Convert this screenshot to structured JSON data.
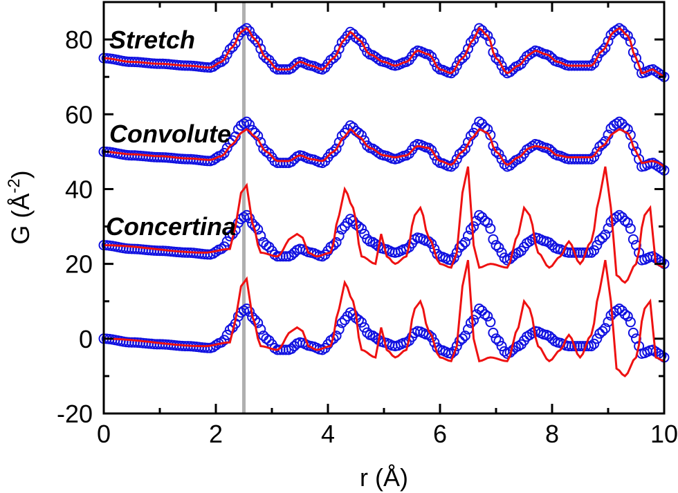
{
  "chart_data": {
    "type": "line",
    "xlabel": "r (Å)",
    "ylabel_main": "G (Å",
    "ylabel_sup": "-2",
    "ylabel_tail": ")",
    "xlim": [
      0,
      10
    ],
    "ylim": [
      -20,
      90
    ],
    "xticks": [
      0,
      2,
      4,
      6,
      8,
      10
    ],
    "yticks": [
      -20,
      0,
      20,
      40,
      60,
      80
    ],
    "grid": false,
    "reference_line_x": 2.5,
    "colors": {
      "measured": "#1010e0",
      "model": "#ee1111",
      "reference": "#b0b0b0"
    },
    "annotations": [
      {
        "text": "Stretch",
        "x": 0.1,
        "y": 80
      },
      {
        "text": "Convolute",
        "x": 0.1,
        "y": 55
      },
      {
        "text": "Concertina",
        "x": 0.1,
        "y": 29
      }
    ],
    "series": [
      {
        "style": "circles",
        "offset": 0,
        "x": [
          0.0,
          0.5,
          1.0,
          1.5,
          1.9,
          2.1,
          2.3,
          2.45,
          2.55,
          2.7,
          2.9,
          3.1,
          3.3,
          3.5,
          3.7,
          3.9,
          4.1,
          4.3,
          4.4,
          4.55,
          4.75,
          5.0,
          5.2,
          5.4,
          5.6,
          5.8,
          6.0,
          6.2,
          6.4,
          6.6,
          6.7,
          6.85,
          7.0,
          7.2,
          7.4,
          7.6,
          7.7,
          7.9,
          8.1,
          8.3,
          8.5,
          8.7,
          8.9,
          9.1,
          9.2,
          9.35,
          9.5,
          9.6,
          9.8,
          9.9,
          10.0
        ],
        "y": [
          0,
          -1,
          -1.5,
          -2,
          -2.5,
          -1,
          3,
          7,
          8,
          5,
          0,
          -3,
          -3,
          -1,
          -2,
          -3,
          0,
          5,
          7,
          5,
          1,
          -1,
          -2,
          -1,
          2,
          1,
          -3,
          -4,
          0,
          5,
          8,
          6,
          0,
          -4,
          -2,
          1,
          2,
          1,
          -1,
          -2,
          -2,
          -2,
          2,
          7,
          8,
          6,
          0,
          -4,
          -3,
          -4,
          -5
        ]
      },
      {
        "style": "line",
        "offset": 0,
        "x": [
          0.0,
          1.8,
          2.25,
          2.35,
          2.45,
          2.55,
          2.65,
          2.8,
          3.1,
          3.35,
          3.45,
          3.55,
          3.65,
          3.8,
          4.05,
          4.2,
          4.3,
          4.45,
          4.6,
          4.85,
          4.95,
          5.05,
          5.2,
          5.4,
          5.55,
          5.65,
          5.8,
          6.0,
          6.2,
          6.3,
          6.4,
          6.5,
          6.6,
          6.7,
          6.9,
          7.2,
          7.4,
          7.5,
          7.6,
          7.75,
          7.95,
          8.15,
          8.3,
          8.5,
          8.7,
          8.85,
          8.95,
          9.05,
          9.15,
          9.3,
          9.5,
          9.65,
          9.75,
          9.85,
          10.0
        ],
        "y": [
          0,
          -2,
          -1,
          5,
          14,
          16,
          6,
          -2,
          -3,
          2,
          3,
          2,
          -2,
          -3,
          -2,
          8,
          15,
          10,
          -3,
          -5,
          3,
          -3,
          -5,
          -3,
          8,
          10,
          2,
          -5,
          -6,
          -2,
          14,
          21,
          0,
          -6,
          -5,
          -6,
          3,
          10,
          8,
          -2,
          -6,
          -3,
          1,
          -5,
          1,
          13,
          21,
          10,
          -8,
          -10,
          -5,
          8,
          10,
          -5,
          -6
        ]
      },
      {
        "style": "circles",
        "offset": 25,
        "x": [
          0.0,
          0.5,
          1.0,
          1.5,
          1.9,
          2.1,
          2.3,
          2.45,
          2.55,
          2.7,
          2.9,
          3.1,
          3.3,
          3.5,
          3.7,
          3.9,
          4.1,
          4.3,
          4.4,
          4.55,
          4.75,
          5.0,
          5.2,
          5.4,
          5.6,
          5.8,
          6.0,
          6.2,
          6.4,
          6.6,
          6.7,
          6.85,
          7.0,
          7.2,
          7.4,
          7.6,
          7.7,
          7.9,
          8.1,
          8.3,
          8.5,
          8.7,
          8.9,
          9.1,
          9.2,
          9.35,
          9.5,
          9.6,
          9.8,
          9.9,
          10.0
        ],
        "y": [
          0,
          -1,
          -1.5,
          -2,
          -2.5,
          -1,
          3,
          7,
          8,
          5,
          0,
          -3,
          -3,
          -1,
          -2,
          -3,
          0,
          5,
          7,
          5,
          1,
          -1,
          -2,
          -1,
          2,
          1,
          -3,
          -4,
          0,
          5,
          8,
          6,
          0,
          -4,
          -2,
          1,
          2,
          1,
          -1,
          -2,
          -2,
          -2,
          2,
          7,
          8,
          6,
          0,
          -4,
          -3,
          -4,
          -5
        ]
      },
      {
        "style": "line",
        "offset": 25,
        "x": [
          0.0,
          1.8,
          2.25,
          2.35,
          2.45,
          2.55,
          2.65,
          2.8,
          3.1,
          3.35,
          3.45,
          3.55,
          3.65,
          3.8,
          4.05,
          4.2,
          4.3,
          4.45,
          4.6,
          4.85,
          4.95,
          5.05,
          5.2,
          5.4,
          5.55,
          5.65,
          5.8,
          6.0,
          6.2,
          6.3,
          6.4,
          6.5,
          6.6,
          6.7,
          6.9,
          7.2,
          7.4,
          7.5,
          7.6,
          7.75,
          7.95,
          8.15,
          8.3,
          8.5,
          8.7,
          8.85,
          8.95,
          9.05,
          9.15,
          9.3,
          9.5,
          9.65,
          9.75,
          9.85,
          10.0
        ],
        "y": [
          0,
          -2,
          -1,
          5,
          14,
          16,
          6,
          -2,
          -3,
          2,
          3,
          2,
          -2,
          -3,
          -2,
          8,
          15,
          10,
          -3,
          -5,
          3,
          -3,
          -5,
          -3,
          8,
          10,
          2,
          -5,
          -6,
          -2,
          14,
          21,
          0,
          -6,
          -5,
          -6,
          3,
          10,
          8,
          -2,
          -6,
          -3,
          1,
          -5,
          1,
          13,
          21,
          10,
          -8,
          -10,
          -5,
          8,
          10,
          -5,
          -6
        ]
      },
      {
        "style": "circles",
        "offset": 50,
        "x": [
          0.0,
          0.5,
          1.0,
          1.5,
          1.9,
          2.1,
          2.3,
          2.45,
          2.55,
          2.7,
          2.9,
          3.1,
          3.3,
          3.5,
          3.7,
          3.9,
          4.1,
          4.3,
          4.4,
          4.55,
          4.75,
          5.0,
          5.2,
          5.4,
          5.6,
          5.8,
          6.0,
          6.2,
          6.4,
          6.6,
          6.7,
          6.85,
          7.0,
          7.2,
          7.4,
          7.6,
          7.7,
          7.9,
          8.1,
          8.3,
          8.5,
          8.7,
          8.9,
          9.1,
          9.2,
          9.35,
          9.5,
          9.6,
          9.8,
          9.9,
          10.0
        ],
        "y": [
          0,
          -1,
          -1.5,
          -2,
          -2.5,
          -1,
          3,
          7,
          8,
          5,
          0,
          -3,
          -3,
          -1,
          -2,
          -3,
          0,
          5,
          7,
          5,
          1,
          -1,
          -2,
          -1,
          2,
          1,
          -3,
          -4,
          0,
          5,
          8,
          6,
          0,
          -4,
          -2,
          1,
          2,
          1,
          -1,
          -2,
          -2,
          -2,
          2,
          7,
          8,
          6,
          0,
          -4,
          -3,
          -4,
          -5
        ]
      },
      {
        "style": "line",
        "offset": 50,
        "x": [
          0.0,
          0.5,
          1.0,
          1.5,
          1.9,
          2.1,
          2.3,
          2.45,
          2.55,
          2.7,
          2.9,
          3.1,
          3.3,
          3.5,
          3.7,
          3.9,
          4.1,
          4.3,
          4.4,
          4.55,
          4.75,
          5.0,
          5.2,
          5.4,
          5.6,
          5.8,
          6.0,
          6.2,
          6.4,
          6.6,
          6.7,
          6.85,
          7.0,
          7.2,
          7.4,
          7.6,
          7.7,
          7.9,
          8.1,
          8.3,
          8.5,
          8.7,
          8.9,
          9.1,
          9.2,
          9.35,
          9.5,
          9.6,
          9.8,
          9.9,
          10.0
        ],
        "y": [
          0,
          -0.7,
          -1.2,
          -1.8,
          -2.2,
          -1.2,
          2,
          5,
          6,
          4,
          0,
          -2.5,
          -2.5,
          -1,
          -2,
          -2.5,
          0,
          4,
          6,
          4,
          1,
          -1,
          -1.5,
          -1,
          1.5,
          1,
          -2.5,
          -3.5,
          0,
          4,
          6,
          5,
          0,
          -3.5,
          -1.5,
          1,
          1.5,
          1,
          -1,
          -1.5,
          -1.5,
          -1.5,
          1.5,
          5,
          6,
          5,
          0,
          -3,
          -2.5,
          -3,
          -4
        ]
      },
      {
        "style": "circles",
        "offset": 75,
        "x": [
          0.0,
          0.5,
          1.0,
          1.5,
          1.9,
          2.1,
          2.3,
          2.45,
          2.55,
          2.7,
          2.9,
          3.1,
          3.3,
          3.5,
          3.7,
          3.9,
          4.1,
          4.3,
          4.4,
          4.55,
          4.75,
          5.0,
          5.2,
          5.4,
          5.6,
          5.8,
          6.0,
          6.2,
          6.4,
          6.6,
          6.7,
          6.85,
          7.0,
          7.2,
          7.4,
          7.6,
          7.7,
          7.9,
          8.1,
          8.3,
          8.5,
          8.7,
          8.9,
          9.1,
          9.2,
          9.35,
          9.5,
          9.6,
          9.8,
          9.9,
          10.0
        ],
        "y": [
          0,
          -1,
          -1.5,
          -2,
          -2.5,
          -1,
          3,
          7,
          8,
          5,
          0,
          -3,
          -3,
          -1,
          -2,
          -3,
          0,
          5,
          7,
          5,
          1,
          -1,
          -2,
          -1,
          2,
          1,
          -3,
          -4,
          0,
          5,
          8,
          6,
          0,
          -4,
          -2,
          1,
          2,
          1,
          -1,
          -2,
          -2,
          -2,
          2,
          7,
          8,
          6,
          0,
          -4,
          -3,
          -4,
          -5
        ]
      },
      {
        "style": "line",
        "offset": 75,
        "x": [
          0.0,
          0.5,
          1.0,
          1.5,
          1.9,
          2.1,
          2.3,
          2.45,
          2.55,
          2.7,
          2.9,
          3.1,
          3.3,
          3.5,
          3.7,
          3.9,
          4.1,
          4.3,
          4.4,
          4.55,
          4.75,
          5.0,
          5.2,
          5.4,
          5.6,
          5.8,
          6.0,
          6.2,
          6.4,
          6.6,
          6.7,
          6.85,
          7.0,
          7.2,
          7.4,
          7.6,
          7.7,
          7.9,
          8.1,
          8.3,
          8.5,
          8.7,
          8.9,
          9.1,
          9.2,
          9.35,
          9.5,
          9.6,
          9.8,
          9.9,
          10.0
        ],
        "y": [
          0,
          -1,
          -1.5,
          -2,
          -2.5,
          -1,
          3,
          7,
          8,
          5,
          0,
          -3,
          -3,
          -1,
          -2,
          -3,
          0,
          5,
          7,
          5,
          1,
          -1,
          -2,
          -1,
          2,
          1,
          -3,
          -4,
          0,
          5,
          8,
          6,
          0,
          -4,
          -2,
          1,
          2,
          1,
          -1,
          -2,
          -2,
          -2,
          2,
          7,
          8,
          6,
          0,
          -4,
          -3,
          -4,
          -5
        ]
      }
    ]
  }
}
